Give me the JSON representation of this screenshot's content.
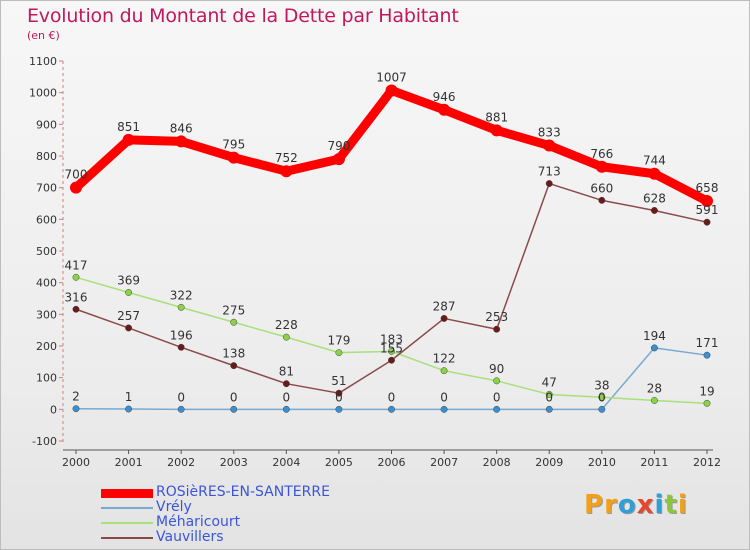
{
  "header": {
    "title": "Evolution du Montant de la Dette par Habitant",
    "subtitle": "(en €)"
  },
  "logo": {
    "text": "Proxiti",
    "letters": [
      {
        "ch": "P",
        "color": "#f2a019"
      },
      {
        "ch": "r",
        "color": "#f2a019"
      },
      {
        "ch": "o",
        "color": "#2f9fd8"
      },
      {
        "ch": "x",
        "color": "#e8452f"
      },
      {
        "ch": "i",
        "color": "#2f9fd8"
      },
      {
        "ch": "t",
        "color": "#8cc63f"
      },
      {
        "ch": "i",
        "color": "#f2a019"
      }
    ]
  },
  "chart_data": {
    "type": "line",
    "title": "Evolution du Montant de la Dette par Habitant",
    "subtitle": "(en €)",
    "xlabel": "",
    "ylabel": "",
    "x": [
      "2000",
      "2001",
      "2002",
      "2003",
      "2004",
      "2005",
      "2006",
      "2007",
      "2008",
      "2009",
      "2010",
      "2011",
      "2012"
    ],
    "ylim": [
      -100,
      1100
    ],
    "yticks": [
      -100,
      0,
      100,
      200,
      300,
      400,
      500,
      600,
      700,
      800,
      900,
      1000,
      1100
    ],
    "grid": false,
    "legend": "bottom-left",
    "series": [
      {
        "name": "ROSièRES-EN-SANTERRE",
        "color": "#ff0000",
        "marker_color": "#ff0000",
        "thick": true,
        "values": [
          700,
          851,
          846,
          795,
          752,
          790,
          1007,
          946,
          881,
          833,
          766,
          744,
          658
        ]
      },
      {
        "name": "Vrély",
        "color": "#7aa9cf",
        "marker_color": "#3a8fd0",
        "thick": false,
        "values": [
          2,
          1,
          0,
          0,
          0,
          0,
          0,
          0,
          0,
          0,
          0,
          194,
          171
        ]
      },
      {
        "name": "Méharicourt",
        "color": "#a8e07a",
        "marker_color": "#8ad348",
        "thick": false,
        "values": [
          417,
          369,
          322,
          275,
          228,
          179,
          183,
          122,
          90,
          47,
          38,
          28,
          19
        ]
      },
      {
        "name": "Vauvillers",
        "color": "#8b4a4a",
        "marker_color": "#6b1a1a",
        "thick": false,
        "values": [
          316,
          257,
          196,
          138,
          81,
          51,
          155,
          287,
          253,
          713,
          660,
          628,
          591
        ]
      }
    ]
  }
}
